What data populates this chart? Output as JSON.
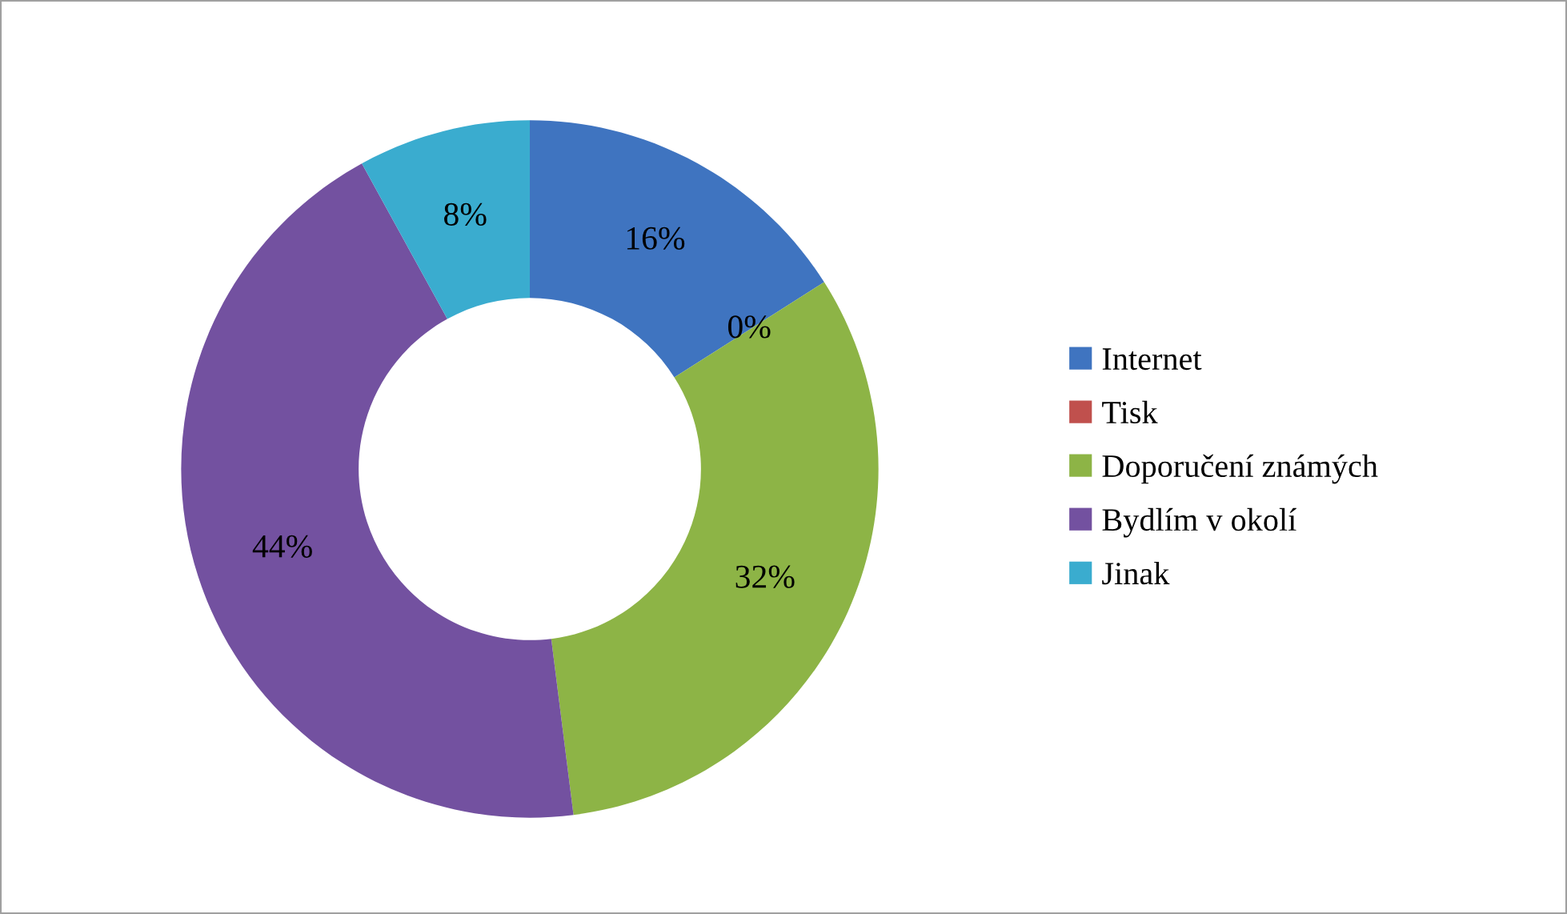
{
  "chart_data": {
    "type": "donut",
    "categories": [
      "Internet",
      "Tisk",
      "Doporučení známých",
      "Bydlím v okolí",
      "Jinak"
    ],
    "values": [
      16,
      0,
      32,
      44,
      8
    ],
    "colors": [
      "#3f74c0",
      "#c0504d",
      "#8db446",
      "#7351a0",
      "#3aaccf"
    ],
    "value_labels": [
      "16%",
      "0%",
      "32%",
      "44%",
      "8%"
    ],
    "legend": "right"
  }
}
